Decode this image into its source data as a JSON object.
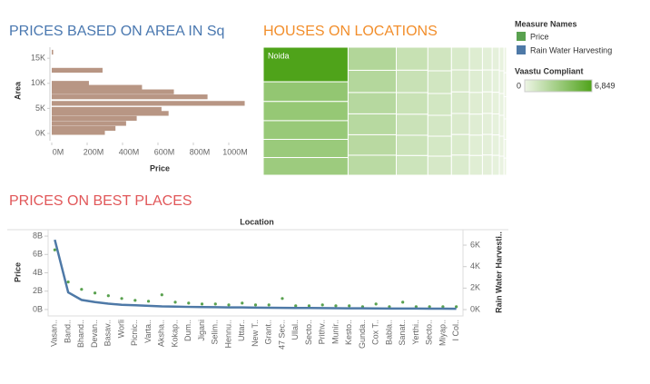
{
  "chart_data": [
    {
      "type": "hbar",
      "title": "PRICES BASED ON AREA IN Sq",
      "x_label": "Price",
      "y_label": "Area",
      "color": "#b89684",
      "areas": [
        16200,
        12600,
        10000,
        9200,
        8300,
        7300,
        6000,
        4800,
        4000,
        3000,
        2000,
        1000,
        200
      ],
      "values": [
        8000000,
        287000000,
        210000000,
        510000000,
        690000000,
        880000000,
        1090000000,
        620000000,
        660000000,
        480000000,
        420000000,
        360000000,
        300000000
      ],
      "xlim": [
        0,
        1118000000
      ],
      "xticks": [
        {
          "value": 0,
          "label": "0M"
        },
        {
          "value": 200000000,
          "label": "200M"
        },
        {
          "value": 400000000,
          "label": "400M"
        },
        {
          "value": 600000000,
          "label": "600M"
        },
        {
          "value": 800000000,
          "label": "800M"
        },
        {
          "value": 1000000000,
          "label": "1000M"
        }
      ],
      "ylim": [
        -1450,
        17200
      ],
      "yticks": [
        {
          "value": 0,
          "label": "0K"
        },
        {
          "value": 5000,
          "label": "5K"
        },
        {
          "value": 10000,
          "label": "10K"
        },
        {
          "value": 15000,
          "label": "15K"
        }
      ]
    },
    {
      "type": "treemap",
      "title": "HOUSES ON LOCATIONS",
      "color_title": "Vaastu Compliant",
      "color_range": [
        "#eef5e6",
        "#4fa31a"
      ],
      "colorlim": [
        0,
        6849
      ],
      "color_ticks": [
        0,
        {
          "value": 6849,
          "label": "6,849"
        }
      ],
      "values": [
        6849,
        3900,
        3800,
        3700,
        3600,
        3500,
        2600,
        2500,
        2400,
        2350,
        2300,
        2250,
        1700,
        1650,
        1600,
        1550,
        1500,
        1450,
        1300,
        1250,
        1200,
        1150,
        1100,
        1050,
        950,
        920,
        900,
        880,
        860,
        840,
        700,
        680,
        660,
        640,
        620,
        600,
        520,
        500,
        490,
        480,
        470,
        460,
        380,
        370,
        360,
        350,
        340,
        330,
        260,
        250,
        240,
        230,
        220,
        210,
        150,
        140,
        130,
        120,
        110,
        100
      ],
      "labels": [
        "Noida",
        null,
        null,
        null,
        null,
        null,
        null,
        null,
        null,
        null,
        null,
        null,
        null,
        null,
        null,
        null,
        null,
        null,
        null,
        null,
        null,
        null,
        null,
        null,
        null,
        null,
        null,
        null,
        null,
        null,
        null,
        null,
        null,
        null,
        null,
        null,
        null,
        null,
        null,
        null,
        null,
        null,
        null,
        null,
        null,
        null,
        null,
        null,
        null,
        null,
        null,
        null,
        null,
        null,
        null,
        null,
        null,
        null,
        null,
        null
      ]
    },
    {
      "type": "combo",
      "title": "PRICES ON BEST PLACES",
      "header": "Location",
      "y_label": "Price",
      "y2_label": "Rain Water Harvesti..",
      "legend_title": "Measure Names",
      "categories": [
        "Vasan..",
        "Band..",
        "Bhand..",
        "Devan..",
        "Basav..",
        "Worli",
        "Picnic..",
        "Varta..",
        "Aksha..",
        "Kokap..",
        "Dum..",
        "Jigani",
        "Selim..",
        "Hennu..",
        "Uttar..",
        "New T..",
        "Grant..",
        "47 Sec..",
        "Ullal..",
        "Secto..",
        "Prithv..",
        "Munir..",
        "Kesto..",
        "Gunda..",
        "Cox T..",
        "Babla..",
        "Sanat..",
        "Yerthi..",
        "Secto..",
        "Miyap..",
        "I Col.."
      ],
      "series": [
        {
          "name": "Price",
          "color": "#59a14f",
          "marker": "point",
          "values": [
            6500000000,
            3000000000,
            2200000000,
            1800000000,
            1500000000,
            1200000000,
            1000000000,
            900000000,
            1600000000,
            800000000,
            700000000,
            600000000,
            600000000,
            500000000,
            700000000,
            500000000,
            500000000,
            1200000000,
            400000000,
            400000000,
            500000000,
            400000000,
            400000000,
            300000000,
            600000000,
            300000000,
            800000000,
            300000000,
            300000000,
            300000000,
            300000000
          ]
        },
        {
          "name": "Rain Water Harvesting",
          "color": "#4e79a7",
          "marker": "line",
          "axis": "y2",
          "values": [
            6500,
            1600,
            900,
            700,
            550,
            450,
            400,
            350,
            300,
            280,
            250,
            230,
            220,
            200,
            200,
            180,
            170,
            160,
            150,
            150,
            140,
            130,
            120,
            120,
            110,
            100,
            100,
            100,
            90,
            90,
            80
          ]
        }
      ],
      "ylim": [
        -700000000,
        8700000000
      ],
      "yticks": [
        {
          "value": 0,
          "label": "0B"
        },
        {
          "value": 2000000000,
          "label": "2B"
        },
        {
          "value": 4000000000,
          "label": "4B"
        },
        {
          "value": 6000000000,
          "label": "6B"
        },
        {
          "value": 8000000000,
          "label": "8B"
        }
      ],
      "y2lim": [
        -590,
        7440
      ],
      "y2ticks": [
        {
          "value": 0,
          "label": "0K"
        },
        {
          "value": 2000,
          "label": "2K"
        },
        {
          "value": 4000,
          "label": "4K"
        },
        {
          "value": 6000,
          "label": "6K"
        }
      ]
    }
  ]
}
